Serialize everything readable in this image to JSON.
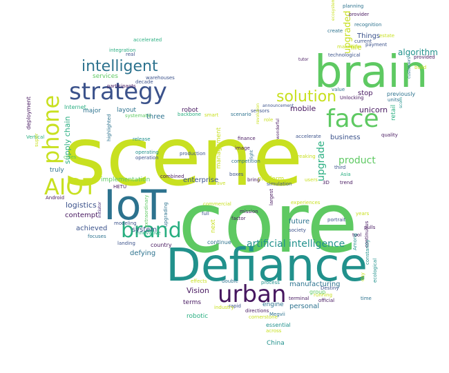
{
  "palette": {
    "dark_purple": "#46175f",
    "purple": "#472d7b",
    "indigo": "#3b528b",
    "steel_blue": "#2c728e",
    "teal": "#21918c",
    "sea_green": "#28ae80",
    "green": "#5ec962",
    "lime": "#addc30",
    "yellow": "#c8e020"
  },
  "words": [
    {
      "text": "scene",
      "color": "#c8e020"
    },
    {
      "text": "core",
      "color": "#5ec962"
    },
    {
      "text": "Defiance",
      "color": "#21918c"
    },
    {
      "text": "brain",
      "color": "#5ec962"
    },
    {
      "text": "IoT",
      "color": "#2c728e"
    },
    {
      "text": "strategy",
      "color": "#3b528b"
    },
    {
      "text": "face",
      "color": "#5ec962"
    },
    {
      "text": "urban",
      "color": "#46175f"
    },
    {
      "text": "brand",
      "color": "#28ae80"
    },
    {
      "text": "AIOT",
      "color": "#c8e020"
    },
    {
      "text": "phone",
      "color": "#c8e020"
    },
    {
      "text": "intelligent",
      "color": "#2c728e"
    },
    {
      "text": "solution",
      "color": "#c8e020"
    },
    {
      "text": "artificial intelligence",
      "color": "#21918c"
    },
    {
      "text": "algorithm",
      "color": "#21918c"
    },
    {
      "text": "supply chain",
      "color": "#28ae80"
    },
    {
      "text": "upgraded",
      "color": "#c8e020"
    },
    {
      "text": "upgrade",
      "color": "#28ae80"
    },
    {
      "text": "product",
      "color": "#5ec962"
    },
    {
      "text": "logistics",
      "color": "#3b528b"
    },
    {
      "text": "mobile",
      "color": "#46175f"
    },
    {
      "text": "unicorn",
      "color": "#46175f"
    },
    {
      "text": "Things",
      "color": "#3b528b"
    },
    {
      "text": "business",
      "color": "#3b528b"
    },
    {
      "text": "life",
      "color": "#c8e020"
    },
    {
      "text": "stop",
      "color": "#46175f"
    },
    {
      "text": "previously",
      "color": "#2c728e"
    },
    {
      "text": "manufacturing",
      "color": "#2c728e"
    },
    {
      "text": "personal",
      "color": "#2c728e"
    },
    {
      "text": "Vision",
      "color": "#46175f"
    },
    {
      "text": "group",
      "color": "#5ec962"
    },
    {
      "text": "engine",
      "color": "#2c728e"
    },
    {
      "text": "future",
      "color": "#2c728e"
    },
    {
      "text": "robot",
      "color": "#46175f"
    },
    {
      "text": "enterprise",
      "color": "#3b528b"
    },
    {
      "text": "achieved",
      "color": "#3b528b"
    },
    {
      "text": "contempt",
      "color": "#46175f"
    },
    {
      "text": "defying",
      "color": "#2c728e"
    },
    {
      "text": "system",
      "color": "#3b528b"
    },
    {
      "text": "three",
      "color": "#2c728e"
    },
    {
      "text": "layout",
      "color": "#2c728e"
    },
    {
      "text": "services",
      "color": "#5ec962"
    },
    {
      "text": "implementation",
      "color": "#5ec962"
    },
    {
      "text": "truly",
      "color": "#2c728e"
    },
    {
      "text": "management",
      "color": "#c8e020"
    },
    {
      "text": "next",
      "color": "#c8e020"
    },
    {
      "text": "platform",
      "color": "#c8e020"
    },
    {
      "text": "major",
      "color": "#2c728e"
    },
    {
      "text": "Internet,",
      "color": "#28ae80"
    },
    {
      "text": "deployment",
      "color": "#46175f"
    },
    {
      "text": "retail",
      "color": "#28ae80"
    },
    {
      "text": "robotic",
      "color": "#28ae80"
    },
    {
      "text": "terms",
      "color": "#46175f"
    },
    {
      "text": "China",
      "color": "#21918c"
    },
    {
      "text": "essential",
      "color": "#21918c"
    },
    {
      "text": "across",
      "color": "#c8e020"
    },
    {
      "text": "cornerstone",
      "color": "#c8e020"
    },
    {
      "text": "Megvii",
      "color": "#2c728e"
    },
    {
      "text": "directions",
      "color": "#46175f"
    },
    {
      "text": "rapid",
      "color": "#3b528b"
    },
    {
      "text": "industry",
      "color": "#c8e020"
    },
    {
      "text": "terminal",
      "color": "#46175f"
    },
    {
      "text": "official",
      "color": "#46175f"
    },
    {
      "text": "Destiny",
      "color": "#3b528b"
    },
    {
      "text": "running",
      "color": "#c8e020"
    },
    {
      "text": "process",
      "color": "#21918c"
    },
    {
      "text": "double",
      "color": "#2c728e"
    },
    {
      "text": "effects",
      "color": "#c8e020"
    },
    {
      "text": "continue",
      "color": "#2c728e"
    },
    {
      "text": "country",
      "color": "#46175f"
    },
    {
      "text": "landing",
      "color": "#3b528b"
    },
    {
      "text": "innovative",
      "color": "#28ae80"
    },
    {
      "text": "modeling",
      "color": "#3b528b"
    },
    {
      "text": "focuses",
      "color": "#2c728e"
    },
    {
      "text": "HETU",
      "color": "#46175f"
    },
    {
      "text": "Android",
      "color": "#46175f"
    },
    {
      "text": "initiator",
      "color": "#472d7b"
    },
    {
      "text": "extraordinary",
      "color": "#5ec962"
    },
    {
      "text": "upgrading",
      "color": "#2c728e"
    },
    {
      "text": "combined",
      "color": "#46175f"
    },
    {
      "text": "cities",
      "color": "#5ec962"
    },
    {
      "text": "operation",
      "color": "#3b528b"
    },
    {
      "text": "operating",
      "color": "#21918c"
    },
    {
      "text": "release",
      "color": "#21918c"
    },
    {
      "text": "production",
      "color": "#3b528b"
    },
    {
      "text": "highlighted",
      "color": "#2c728e"
    },
    {
      "text": "systematic",
      "color": "#5ec962"
    },
    {
      "text": "participants",
      "color": "#46175f"
    },
    {
      "text": "decade",
      "color": "#3b528b"
    },
    {
      "text": "warehouses",
      "color": "#3b528b"
    },
    {
      "text": "real",
      "color": "#3b528b"
    },
    {
      "text": "integration",
      "color": "#28ae80"
    },
    {
      "text": "accelerated",
      "color": "#28ae80"
    },
    {
      "text": "Vertical",
      "color": "#28ae80"
    },
    {
      "text": "super",
      "color": "#c8e020"
    },
    {
      "text": "backbone",
      "color": "#28ae80"
    },
    {
      "text": "smart",
      "color": "#c8e020"
    },
    {
      "text": "scenario",
      "color": "#2c728e"
    },
    {
      "text": "sensors",
      "color": "#3b528b"
    },
    {
      "text": "revolution",
      "color": "#c8e020"
    },
    {
      "text": "role",
      "color": "#c8e020"
    },
    {
      "text": "announcement",
      "color": "#3b528b"
    },
    {
      "text": "finance",
      "color": "#46175f"
    },
    {
      "text": "image",
      "color": "#46175f"
    },
    {
      "text": "light",
      "color": "#2c728e"
    },
    {
      "text": "competition",
      "color": "#2c728e"
    },
    {
      "text": "boxes",
      "color": "#3b528b"
    },
    {
      "text": "wave",
      "color": "#c8e020"
    },
    {
      "text": "bring",
      "color": "#46175f"
    },
    {
      "text": "simulation",
      "color": "#3b528b"
    },
    {
      "text": "wonderful",
      "color": "#46175f"
    },
    {
      "text": "breaking",
      "color": "#c8e020"
    },
    {
      "text": "accelerate",
      "color": "#3b528b"
    },
    {
      "text": "users",
      "color": "#c8e020"
    },
    {
      "text": "3D",
      "color": "#46175f"
    },
    {
      "text": "trend",
      "color": "#46175f"
    },
    {
      "text": "Asia",
      "color": "#28ae80"
    },
    {
      "text": "third",
      "color": "#3b528b"
    },
    {
      "text": "commercial",
      "color": "#c8e020"
    },
    {
      "text": "full",
      "color": "#3b528b"
    },
    {
      "text": "mission",
      "color": "#46175f"
    },
    {
      "text": "factor",
      "color": "#46175f"
    },
    {
      "text": "largest",
      "color": "#46175f"
    },
    {
      "text": "experiences",
      "color": "#c8e020"
    },
    {
      "text": "society",
      "color": "#3b528b"
    },
    {
      "text": "portrait",
      "color": "#3b528b"
    },
    {
      "text": "years",
      "color": "#c8e020"
    },
    {
      "text": "pulls",
      "color": "#46175f"
    },
    {
      "text": "tool",
      "color": "#46175f"
    },
    {
      "text": "Among",
      "color": "#21918c"
    },
    {
      "text": "continuous",
      "color": "#46175f"
    },
    {
      "text": "constantly",
      "color": "#21918c"
    },
    {
      "text": "day",
      "color": "#c8e020"
    },
    {
      "text": "time",
      "color": "#2c728e"
    },
    {
      "text": "ecological",
      "color": "#21918c"
    },
    {
      "text": "quality",
      "color": "#46175f"
    },
    {
      "text": "units",
      "color": "#2c728e"
    },
    {
      "text": "Unlocking",
      "color": "#46175f"
    },
    {
      "text": "value",
      "color": "#2c728e"
    },
    {
      "text": "tutor",
      "color": "#46175f"
    },
    {
      "text": "technological",
      "color": "#3b528b"
    },
    {
      "text": "maximum",
      "color": "#c8e020"
    },
    {
      "text": "current",
      "color": "#3b528b"
    },
    {
      "text": "create",
      "color": "#2c728e"
    },
    {
      "text": "ecosystem",
      "color": "#c8e020"
    },
    {
      "text": "planning",
      "color": "#2c728e"
    },
    {
      "text": "provider",
      "color": "#46175f"
    },
    {
      "text": "recognition",
      "color": "#2c728e"
    },
    {
      "text": "estate",
      "color": "#c8e020"
    },
    {
      "text": "payment",
      "color": "#3b528b"
    },
    {
      "text": "customers",
      "color": "#2c728e"
    },
    {
      "text": "provided",
      "color": "#46175f"
    },
    {
      "text": "build",
      "color": "#c8e020"
    },
    {
      "text": "scom",
      "color": "#21918c"
    }
  ]
}
